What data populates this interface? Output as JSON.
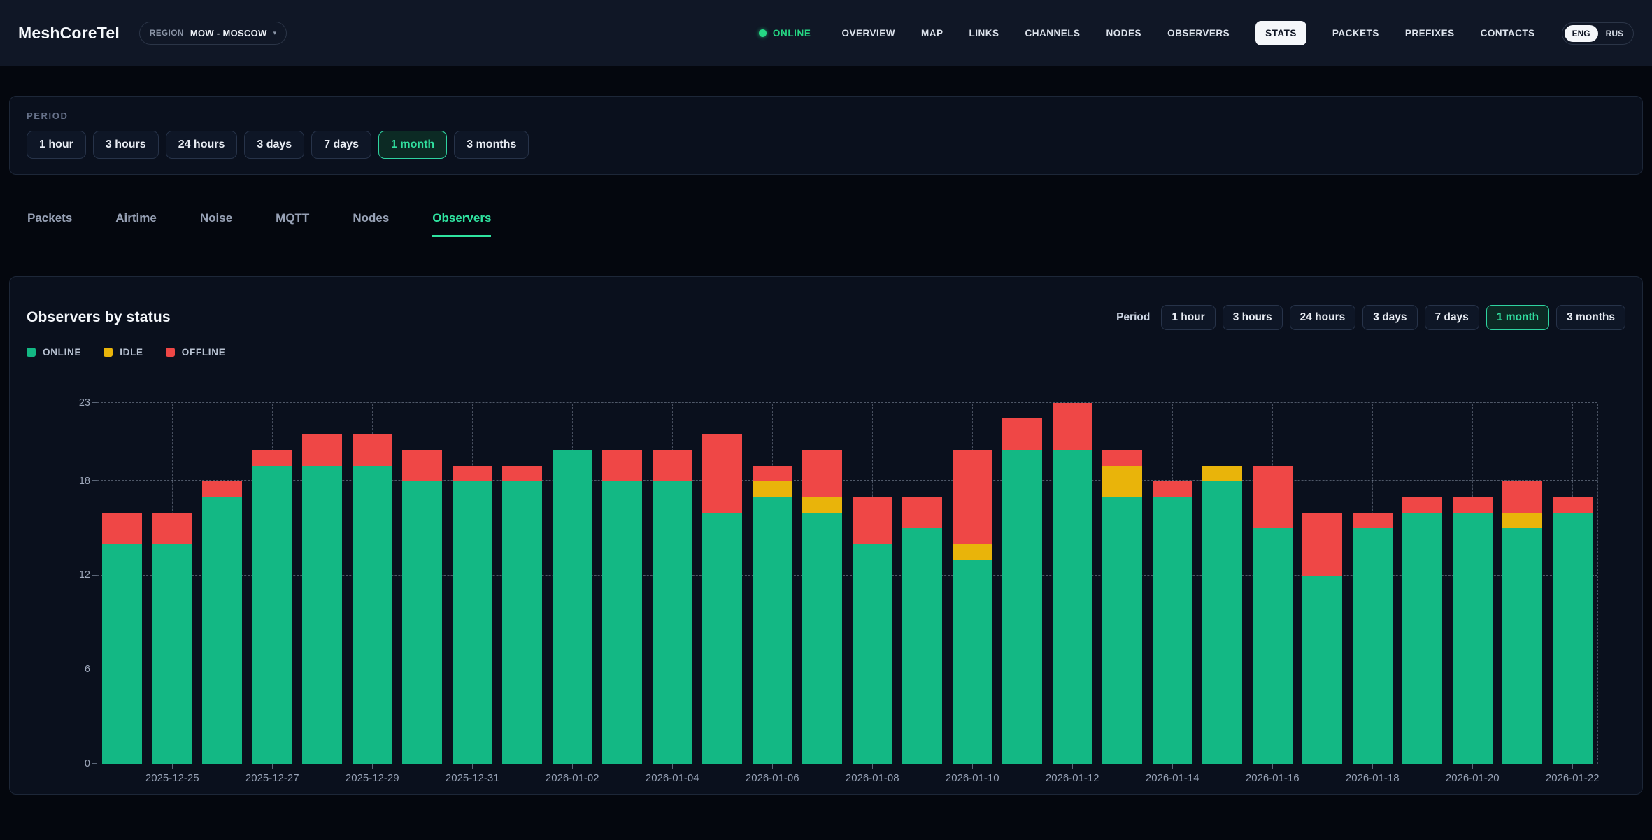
{
  "header": {
    "logo": "MeshCoreTel",
    "region": {
      "label": "REGION",
      "value": "MOW - MOSCOW",
      "caret": "▾"
    },
    "status": {
      "label": "ONLINE"
    },
    "nav": {
      "items": [
        "OVERVIEW",
        "MAP",
        "LINKS",
        "CHANNELS",
        "NODES",
        "OBSERVERS",
        "STATS",
        "PACKETS",
        "PREFIXES",
        "CONTACTS"
      ],
      "active": "STATS"
    },
    "lang": {
      "options": [
        "ENG",
        "RUS"
      ],
      "selected": "ENG"
    }
  },
  "period_card": {
    "title": "PERIOD",
    "options": [
      "1 hour",
      "3 hours",
      "24 hours",
      "3 days",
      "7 days",
      "1 month",
      "3 months"
    ],
    "selected": "1 month"
  },
  "tabs": {
    "items": [
      "Packets",
      "Airtime",
      "Noise",
      "MQTT",
      "Nodes",
      "Observers"
    ],
    "active": "Observers"
  },
  "chart_card": {
    "title": "Observers by status",
    "period_label": "Period",
    "period_options": [
      "1 hour",
      "3 hours",
      "24 hours",
      "3 days",
      "7 days",
      "1 month",
      "3 months"
    ],
    "period_selected": "1 month",
    "legend": [
      {
        "label": "ONLINE",
        "color": "#13b884"
      },
      {
        "label": "IDLE",
        "color": "#e9b40a"
      },
      {
        "label": "OFFLINE",
        "color": "#ef4746"
      }
    ]
  },
  "chart_data": {
    "type": "bar",
    "stacked": true,
    "title": "Observers by status",
    "x": [
      "2025-12-24",
      "2025-12-25",
      "2025-12-26",
      "2025-12-27",
      "2025-12-28",
      "2025-12-29",
      "2025-12-30",
      "2025-12-31",
      "2026-01-01",
      "2026-01-02",
      "2026-01-03",
      "2026-01-04",
      "2026-01-05",
      "2026-01-06",
      "2026-01-07",
      "2026-01-08",
      "2026-01-09",
      "2026-01-10",
      "2026-01-11",
      "2026-01-12",
      "2026-01-13",
      "2026-01-14",
      "2026-01-15",
      "2026-01-16",
      "2026-01-17",
      "2026-01-18",
      "2026-01-19",
      "2026-01-20",
      "2026-01-21",
      "2026-01-22"
    ],
    "labeled_ticks": [
      "2025-12-25",
      "2025-12-27",
      "2025-12-29",
      "2025-12-31",
      "2026-01-02",
      "2026-01-04",
      "2026-01-06",
      "2026-01-08",
      "2026-01-10",
      "2026-01-12",
      "2026-01-14",
      "2026-01-16",
      "2026-01-18",
      "2026-01-20",
      "2026-01-22"
    ],
    "series": [
      {
        "name": "ONLINE",
        "color": "#13b884",
        "values": [
          14,
          14,
          17,
          19,
          19,
          19,
          18,
          18,
          18,
          20,
          18,
          18,
          16,
          17,
          16,
          14,
          15,
          13,
          20,
          20,
          17,
          17,
          18,
          15,
          12,
          15,
          16,
          16,
          15,
          16
        ]
      },
      {
        "name": "IDLE",
        "color": "#e9b40a",
        "values": [
          0,
          0,
          0,
          0,
          0,
          0,
          0,
          0,
          0,
          0,
          0,
          0,
          0,
          1,
          1,
          0,
          0,
          1,
          0,
          0,
          2,
          0,
          1,
          0,
          0,
          0,
          0,
          0,
          1,
          0
        ]
      },
      {
        "name": "OFFLINE",
        "color": "#ef4746",
        "values": [
          2,
          2,
          1,
          1,
          2,
          2,
          2,
          1,
          1,
          0,
          2,
          2,
          5,
          1,
          3,
          3,
          2,
          6,
          2,
          3,
          1,
          1,
          0,
          4,
          4,
          1,
          1,
          1,
          2,
          1
        ]
      }
    ],
    "ylim": [
      0,
      23
    ],
    "yticks": [
      0,
      6,
      12,
      18,
      23
    ],
    "grid": "dashed",
    "legend_position": "top-left"
  }
}
